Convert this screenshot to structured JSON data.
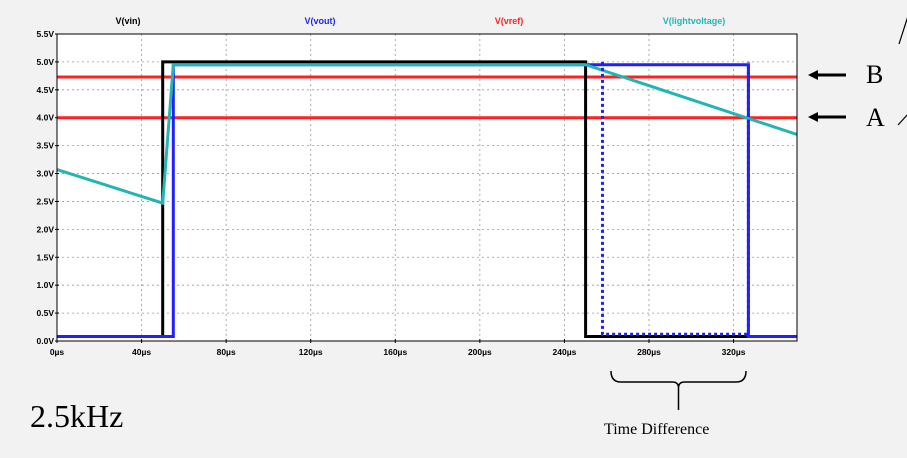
{
  "chart_data": {
    "type": "line",
    "x_unit": "µs",
    "xlim": [
      0,
      350
    ],
    "ylim": [
      0,
      5.5
    ],
    "x_ticks": [
      "0µs",
      "40µs",
      "80µs",
      "120µs",
      "160µs",
      "200µs",
      "240µs",
      "280µs",
      "320µs"
    ],
    "x_tick_values": [
      0,
      40,
      80,
      120,
      160,
      200,
      240,
      280,
      320
    ],
    "y_ticks": [
      "0.0V",
      "0.5V",
      "1.0V",
      "1.5V",
      "2.0V",
      "2.5V",
      "3.0V",
      "3.5V",
      "4.0V",
      "4.5V",
      "5.0V",
      "5.5V"
    ],
    "y_tick_values": [
      0,
      0.5,
      1,
      1.5,
      2,
      2.5,
      3,
      3.5,
      4,
      4.5,
      5,
      5.5
    ],
    "grid": true,
    "series": [
      {
        "name": "V(vin)",
        "color": "#000000",
        "x": [
          0,
          50,
          50,
          250,
          250,
          350
        ],
        "y": [
          0.08,
          0.08,
          5.0,
          5.0,
          0.08,
          0.08
        ]
      },
      {
        "name": "V(vout)",
        "color": "#1f1fff",
        "x": [
          0,
          55,
          55,
          327,
          327,
          350
        ],
        "y": [
          0.08,
          0.08,
          4.95,
          4.95,
          0.08,
          0.08
        ]
      },
      {
        "name": "V(vref)",
        "color": "#ff2020",
        "x": [
          0,
          350
        ],
        "y": [
          4.0,
          4.0
        ],
        "extra": {
          "x": [
            0,
            350
          ],
          "y": [
            4.73,
            4.73
          ]
        }
      },
      {
        "name": "V(lightvoltage)",
        "color": "#22b5b5",
        "x": [
          0,
          50,
          55,
          250,
          350
        ],
        "y": [
          3.07,
          2.47,
          4.95,
          4.95,
          3.7
        ]
      }
    ],
    "dotted_box": {
      "color": "#1f1fff",
      "x": [
        258,
        327
      ],
      "y": [
        0.12,
        5.0
      ]
    }
  },
  "annotations": {
    "frequency": "2.5kHz",
    "time_difference": "Time Difference",
    "label_b": "B",
    "label_a": "A"
  }
}
